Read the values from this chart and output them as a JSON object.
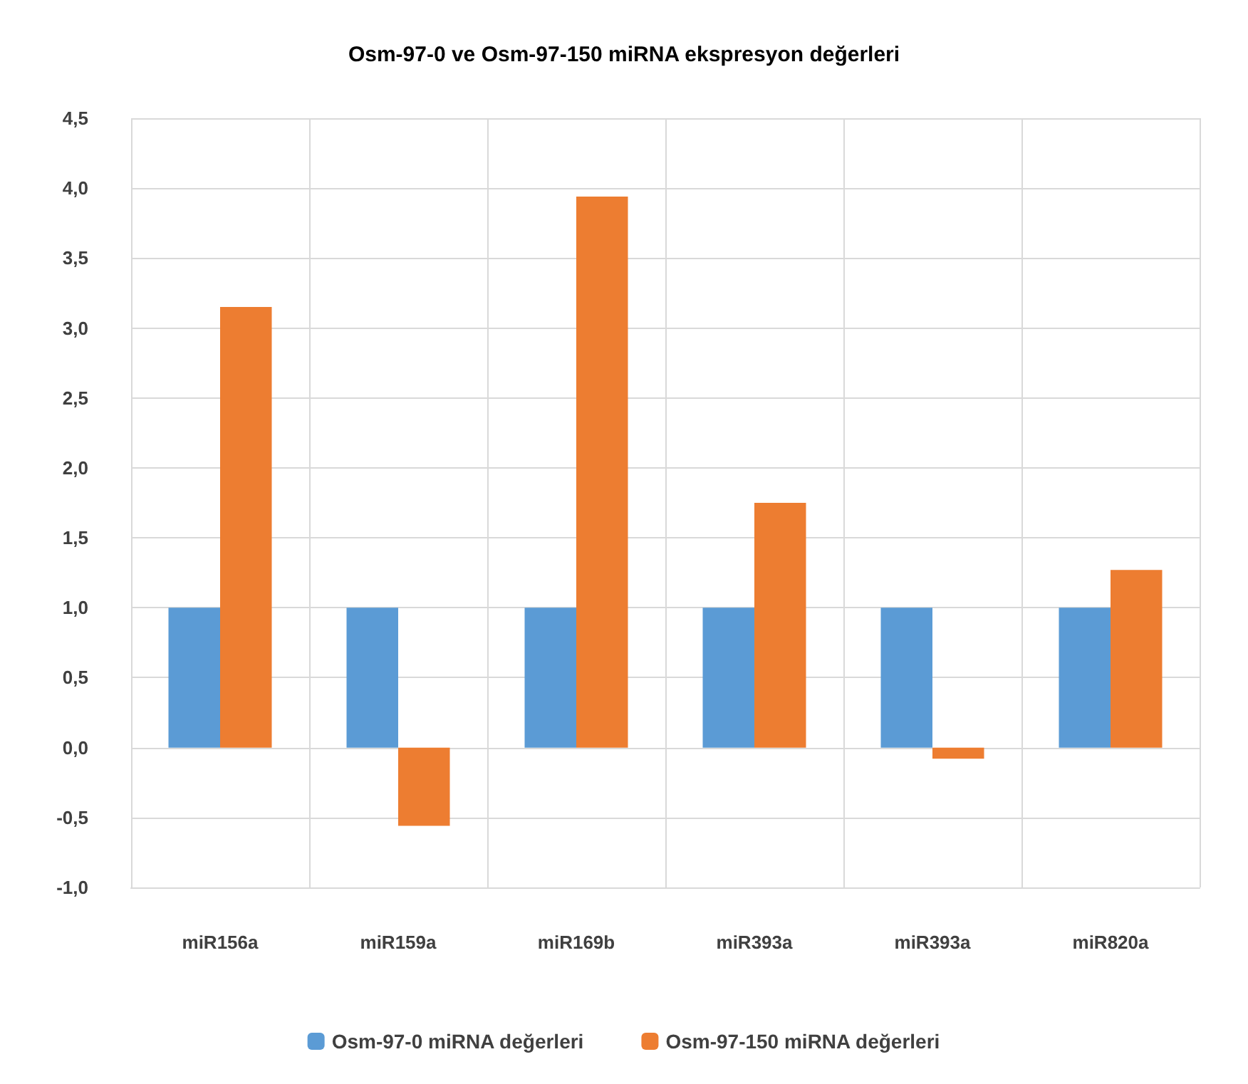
{
  "chart_data": {
    "type": "bar",
    "title": "Osm-97-0 ve Osm-97-150 miRNA ekspresyon değerleri",
    "categories": [
      "miR156a",
      "miR159a",
      "miR169b",
      "miR393a",
      "miR393a",
      "miR820a"
    ],
    "series": [
      {
        "name": "Osm-97-0 miRNA değerleri",
        "color": "#5b9bd5",
        "values": [
          1,
          1,
          1,
          1,
          1,
          1
        ]
      },
      {
        "name": "Osm-97-150 miRNA değerleri",
        "color": "#ed7d31",
        "values": [
          3.15,
          -0.56,
          3.94,
          1.75,
          -0.08,
          1.27
        ]
      }
    ],
    "ylim": [
      -1,
      4.5
    ],
    "yticks": [
      {
        "value": -1,
        "label": "-1,0"
      },
      {
        "value": -0.5,
        "label": "-0,5"
      },
      {
        "value": 0,
        "label": "0,0"
      },
      {
        "value": 0.5,
        "label": "0,5"
      },
      {
        "value": 1,
        "label": "1,0"
      },
      {
        "value": 1.5,
        "label": "1,5"
      },
      {
        "value": 2,
        "label": "2,0"
      },
      {
        "value": 2.5,
        "label": "2,5"
      },
      {
        "value": 3,
        "label": "3,0"
      },
      {
        "value": 3.5,
        "label": "3,5"
      },
      {
        "value": 4,
        "label": "4,0"
      },
      {
        "value": 4.5,
        "label": "4,5"
      }
    ],
    "grid": true,
    "legend": "bottom"
  }
}
